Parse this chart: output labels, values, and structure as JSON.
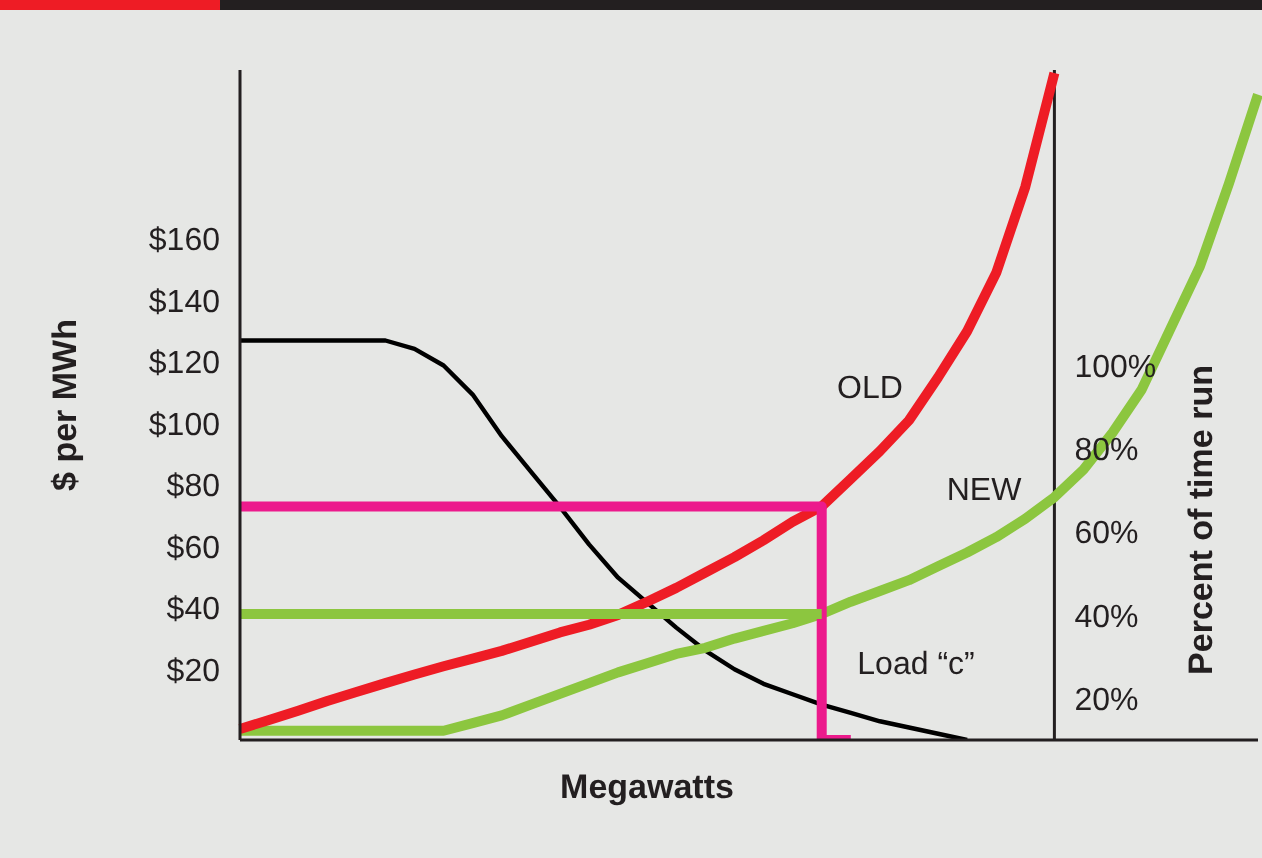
{
  "chart_data": {
    "type": "line",
    "xlabel": "Megawatts",
    "ylabel": "$ per MWh",
    "y2label": "Percent of time run",
    "categories": [
      null,
      null,
      null,
      null,
      null,
      null,
      null,
      null,
      null,
      null,
      null,
      null,
      null,
      null,
      null,
      null,
      null,
      null,
      null,
      null,
      null,
      null,
      null,
      null,
      null,
      null,
      null,
      null,
      null,
      null,
      null,
      null,
      null,
      null,
      null,
      null
    ],
    "ylim": [
      -3,
      215
    ],
    "yticks": [
      {
        "value": 20,
        "label": "$20"
      },
      {
        "value": 40,
        "label": "$40"
      },
      {
        "value": 60,
        "label": "$60"
      },
      {
        "value": 80,
        "label": "$80"
      },
      {
        "value": 100,
        "label": "$100"
      },
      {
        "value": 120,
        "label": "$120"
      },
      {
        "value": 140,
        "label": "$140"
      },
      {
        "value": 160,
        "label": "$160"
      }
    ],
    "y2lim": [
      10,
      171
    ],
    "y2ticks": [
      {
        "value": 20,
        "label": "20%"
      },
      {
        "value": 40,
        "label": "40%"
      },
      {
        "value": 60,
        "label": "60%"
      },
      {
        "value": 80,
        "label": "80%"
      },
      {
        "value": 100,
        "label": "100%"
      }
    ],
    "tick_labels": "y",
    "grid": false,
    "legend": false,
    "marker": "none",
    "line_style": "solid",
    "series": [
      {
        "color": "#000000",
        "axis": "y2",
        "values": [
          106,
          106,
          106,
          106,
          106,
          106,
          104,
          100,
          93,
          83,
          74.5,
          66,
          57,
          49,
          43,
          37,
          31.5,
          27,
          23.5,
          21,
          18.5,
          16.5,
          14.5,
          13,
          11.5,
          10,
          null,
          null,
          null,
          null,
          null,
          null,
          null,
          null,
          null,
          null
        ]
      },
      {
        "color": "#8cc63f",
        "values": [
          0,
          0,
          0,
          0,
          0,
          0,
          0,
          0,
          2.5,
          5,
          8.5,
          12,
          15.5,
          19,
          22,
          25,
          27,
          30,
          32.5,
          35,
          38,
          42,
          45.5,
          49,
          53.5,
          58,
          63,
          69,
          76,
          85,
          97,
          111,
          131,
          151,
          178,
          207
        ]
      },
      {
        "color": "#ee1c25",
        "values": [
          0.6,
          3.5,
          6.5,
          9.7,
          12.6,
          15.5,
          18.3,
          21,
          23.5,
          26,
          29,
          32,
          34.5,
          37.7,
          42,
          46.5,
          51.5,
          56.5,
          62,
          68,
          73,
          82,
          91,
          101,
          115,
          130,
          149,
          177,
          214,
          null,
          null,
          null,
          null,
          null,
          null,
          null
        ]
      },
      {
        "type": "step",
        "color": "#ec1a8c",
        "values": [
          73,
          73,
          73,
          73,
          73,
          73,
          73,
          73,
          73,
          73,
          73,
          73,
          73,
          73,
          73,
          73,
          73,
          73,
          73,
          73,
          73,
          -3,
          null,
          null,
          null,
          null,
          null,
          null,
          null,
          null,
          null,
          null,
          null,
          null,
          null,
          null
        ]
      },
      {
        "color": "#8cc63f",
        "values": [
          38,
          38,
          38,
          38,
          38,
          38,
          38,
          38,
          38,
          38,
          38,
          38,
          38,
          38,
          38,
          38,
          38,
          38,
          38,
          38,
          38,
          null,
          null,
          null,
          null,
          null,
          null,
          null,
          null,
          null,
          null,
          null,
          null,
          null,
          null,
          null
        ]
      }
    ],
    "annotations": [
      "OLD",
      "NEW",
      "Load “c”"
    ]
  }
}
